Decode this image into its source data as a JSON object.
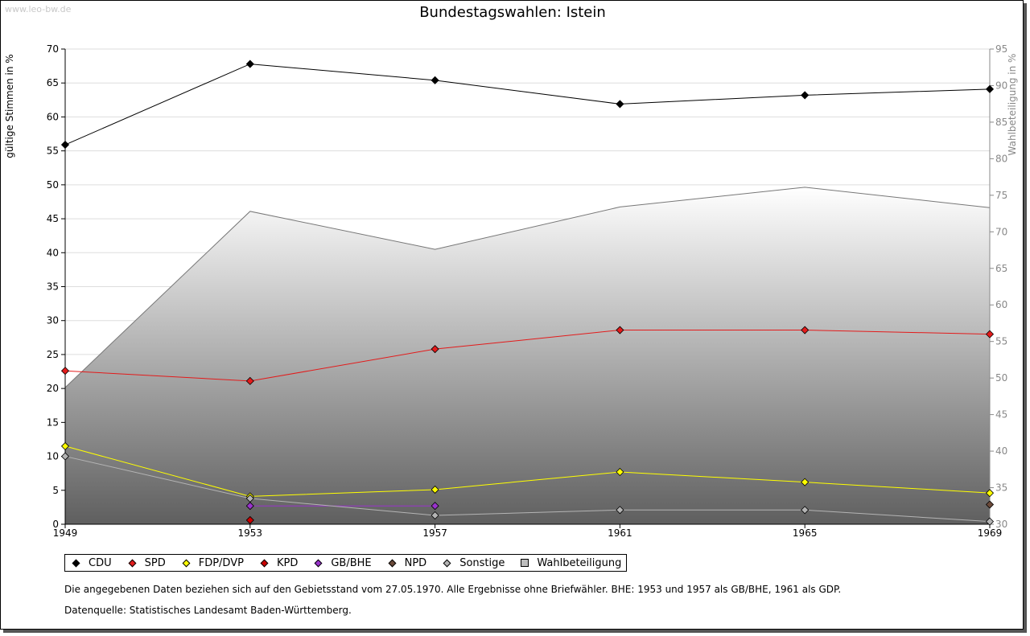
{
  "watermark": "www.leo-bw.de",
  "chart_data": {
    "type": "line",
    "title": "Bundestagswahlen: Istein",
    "ylabel": "gültige Stimmen in %",
    "y2label": "Wahlbeteiligung in %",
    "categories": [
      "1949",
      "1953",
      "1957",
      "1961",
      "1965",
      "1969"
    ],
    "ylim": [
      0,
      70
    ],
    "y2lim": [
      30,
      95
    ],
    "yticks": [
      "0",
      "5",
      "10",
      "15",
      "20",
      "25",
      "30",
      "35",
      "40",
      "45",
      "50",
      "55",
      "60",
      "65",
      "70"
    ],
    "y2ticks": [
      "30",
      "35",
      "40",
      "45",
      "50",
      "55",
      "60",
      "65",
      "70",
      "75",
      "80",
      "85",
      "90",
      "95"
    ],
    "series": [
      {
        "name": "CDU",
        "color": "#000000",
        "values": [
          55.9,
          67.8,
          65.4,
          61.9,
          63.2,
          64.1
        ]
      },
      {
        "name": "SPD",
        "color": "#e31b1b",
        "values": [
          22.6,
          21.1,
          25.8,
          28.6,
          28.6,
          28.0
        ]
      },
      {
        "name": "FDP/DVP",
        "color": "#ffff00",
        "values": [
          11.5,
          4.1,
          5.1,
          7.7,
          6.2,
          4.6
        ]
      },
      {
        "name": "KPD",
        "color": "#cc0000",
        "values": [
          null,
          0.6,
          null,
          null,
          null,
          null
        ]
      },
      {
        "name": "GB/BHE",
        "color": "#9933cc",
        "values": [
          null,
          2.7,
          2.7,
          null,
          null,
          null
        ]
      },
      {
        "name": "NPD",
        "color": "#6b4a3a",
        "values": [
          null,
          null,
          null,
          null,
          null,
          2.9
        ]
      },
      {
        "name": "Sonstige",
        "color": "#b4b4b4",
        "values": [
          10.0,
          3.8,
          1.3,
          2.1,
          2.1,
          0.4
        ]
      }
    ],
    "turnout": {
      "name": "Wahlbeteiligung",
      "values": [
        48.7,
        72.8,
        67.6,
        73.4,
        76.1,
        73.3
      ]
    },
    "notes": [
      "Die angegebenen Daten beziehen sich auf den Gebietsstand vom 27.05.1970. Alle Ergebnisse ohne Briefwähler. BHE: 1953 und 1957 als GB/BHE, 1961 als GDP.",
      "Datenquelle: Statistisches Landesamt Baden-Württemberg."
    ]
  }
}
